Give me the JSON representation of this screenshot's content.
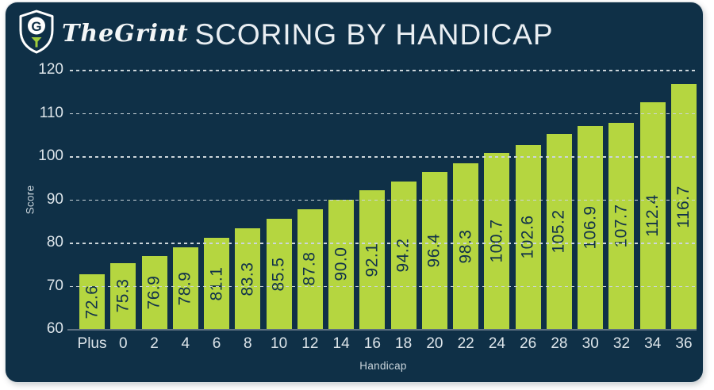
{
  "brand": {
    "name": "TheGrint"
  },
  "header": {
    "title": "SCORING BY HANDICAP"
  },
  "chart_data": {
    "type": "bar",
    "title": "SCORING BY HANDICAP",
    "xlabel": "Handicap",
    "ylabel": "Score",
    "categories": [
      "Plus",
      "0",
      "2",
      "4",
      "6",
      "8",
      "10",
      "12",
      "14",
      "16",
      "18",
      "20",
      "22",
      "24",
      "26",
      "28",
      "30",
      "32",
      "34",
      "36"
    ],
    "values": [
      72.6,
      75.3,
      76.9,
      78.9,
      81.1,
      83.3,
      85.5,
      87.8,
      90.0,
      92.1,
      94.2,
      96.4,
      98.3,
      100.7,
      102.6,
      105.2,
      106.9,
      107.7,
      112.4,
      116.7
    ],
    "ylim": [
      60,
      120
    ],
    "yticks": [
      120,
      110,
      100,
      90,
      80,
      70,
      60
    ],
    "grid": "horizontal-dashed-drawn-over-bars",
    "legend_position": "none",
    "value_labels": "inside-bar-rotated-vertical"
  },
  "colors": {
    "card_background": "#0f3047",
    "page_background": "#ffffff",
    "bar": "#b5d640",
    "bar_value_text": "#10314a",
    "title_text": "#e9eef2",
    "axis_text": "#dde5ea",
    "axis_small_text": "#c9d4db",
    "gridline": "#ccd5da",
    "axis_line": "#5e7181",
    "logo_accent": "#9fcb3b",
    "logo_white": "#ffffff"
  }
}
